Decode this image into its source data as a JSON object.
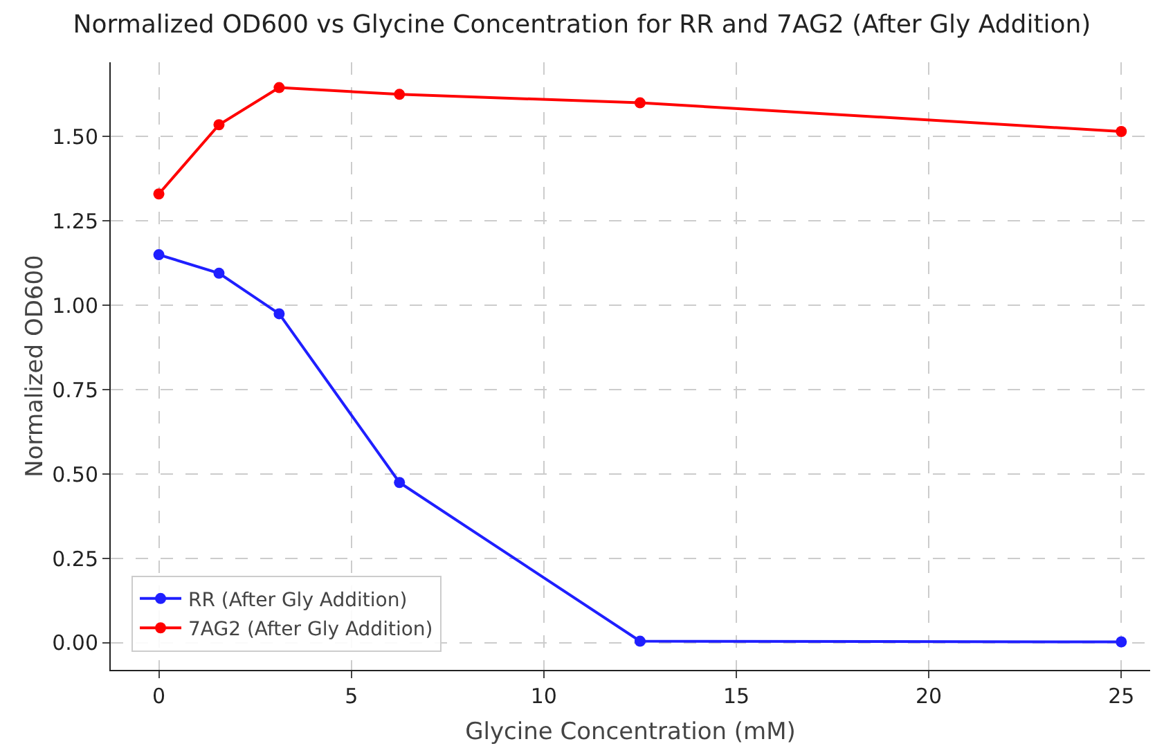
{
  "chart_data": {
    "type": "line",
    "title": "Normalized OD600 vs Glycine Concentration for RR and 7AG2 (After Gly Addition)",
    "xlabel": "Glycine Concentration (mM)",
    "ylabel": "Normalized OD600",
    "x": [
      0,
      1.5625,
      3.125,
      6.25,
      12.5,
      25
    ],
    "series": [
      {
        "name": "RR (After Gly Addition)",
        "color": "#1f1fff",
        "values": [
          1.15,
          1.095,
          0.975,
          0.475,
          0.005,
          0.003
        ]
      },
      {
        "name": "7AG2 (After Gly Addition)",
        "color": "#ff0000",
        "values": [
          1.33,
          1.535,
          1.645,
          1.625,
          1.6,
          1.515
        ]
      }
    ],
    "xlim": [
      -1.25,
      25.75
    ],
    "xticks": [
      0,
      5,
      10,
      15,
      20,
      25
    ],
    "ylim": [
      -0.08,
      1.72
    ],
    "yticks": [
      {
        "value": 0,
        "label": "0.00"
      },
      {
        "value": 0.25,
        "label": "0.25"
      },
      {
        "value": 0.5,
        "label": "0.50"
      },
      {
        "value": 0.75,
        "label": "0.75"
      },
      {
        "value": 1,
        "label": "1.00"
      },
      {
        "value": 1.25,
        "label": "1.25"
      },
      {
        "value": 1.5,
        "label": "1.50"
      }
    ],
    "grid": true,
    "legend": "bottom left",
    "marker": "circle",
    "line_style": "solid"
  }
}
